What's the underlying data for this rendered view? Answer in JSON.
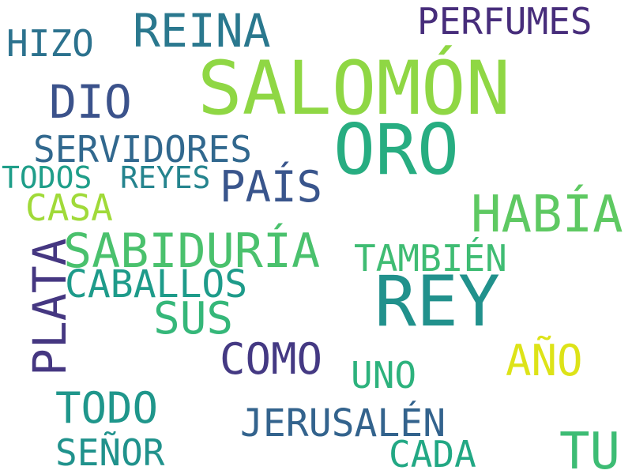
{
  "words": [
    {
      "text": "SALOMÓN",
      "color": "#8fd744"
    },
    {
      "text": "ORO",
      "color": "#27ad81"
    },
    {
      "text": "REY",
      "color": "#21918c"
    },
    {
      "text": "HABÍA",
      "color": "#5ec962"
    },
    {
      "text": "SABIDURÍA",
      "color": "#4ac16d"
    },
    {
      "text": "REINA",
      "color": "#2a788e"
    },
    {
      "text": "DIO",
      "color": "#3b528b"
    },
    {
      "text": "PERFUMES",
      "color": "#472d7b"
    },
    {
      "text": "HIZO",
      "color": "#2c728e"
    },
    {
      "text": "SERVIDORES",
      "color": "#31688e"
    },
    {
      "text": "PAÍS",
      "color": "#39558c"
    },
    {
      "text": "TODOS",
      "color": "#1f9e89"
    },
    {
      "text": "REYES",
      "color": "#25848e"
    },
    {
      "text": "CASA",
      "color": "#a0da39"
    },
    {
      "text": "TAMBIÉN",
      "color": "#3fbc73"
    },
    {
      "text": "CABALLOS",
      "color": "#1e9b8a"
    },
    {
      "text": "SUS",
      "color": "#35b779"
    },
    {
      "text": "PLATA",
      "color": "#453781"
    },
    {
      "text": "COMO",
      "color": "#443983"
    },
    {
      "text": "AÑO",
      "color": "#dde318"
    },
    {
      "text": "UNO",
      "color": "#2db27d"
    },
    {
      "text": "TODO",
      "color": "#1f968b"
    },
    {
      "text": "JERUSALÉN",
      "color": "#33638d"
    },
    {
      "text": "SEÑOR",
      "color": "#20928c"
    },
    {
      "text": "CADA",
      "color": "#22a884"
    },
    {
      "text": "TU",
      "color": "#3dbc74"
    }
  ]
}
